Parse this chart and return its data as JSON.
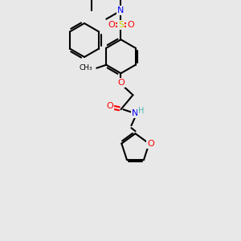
{
  "bg_color": "#e8e8e8",
  "line_color": "#000000",
  "bond_width": 1.5,
  "atom_colors": {
    "N": "#0000ff",
    "O": "#ff0000",
    "S": "#cccc00",
    "H": "#4ab5b5",
    "C": "#000000"
  }
}
